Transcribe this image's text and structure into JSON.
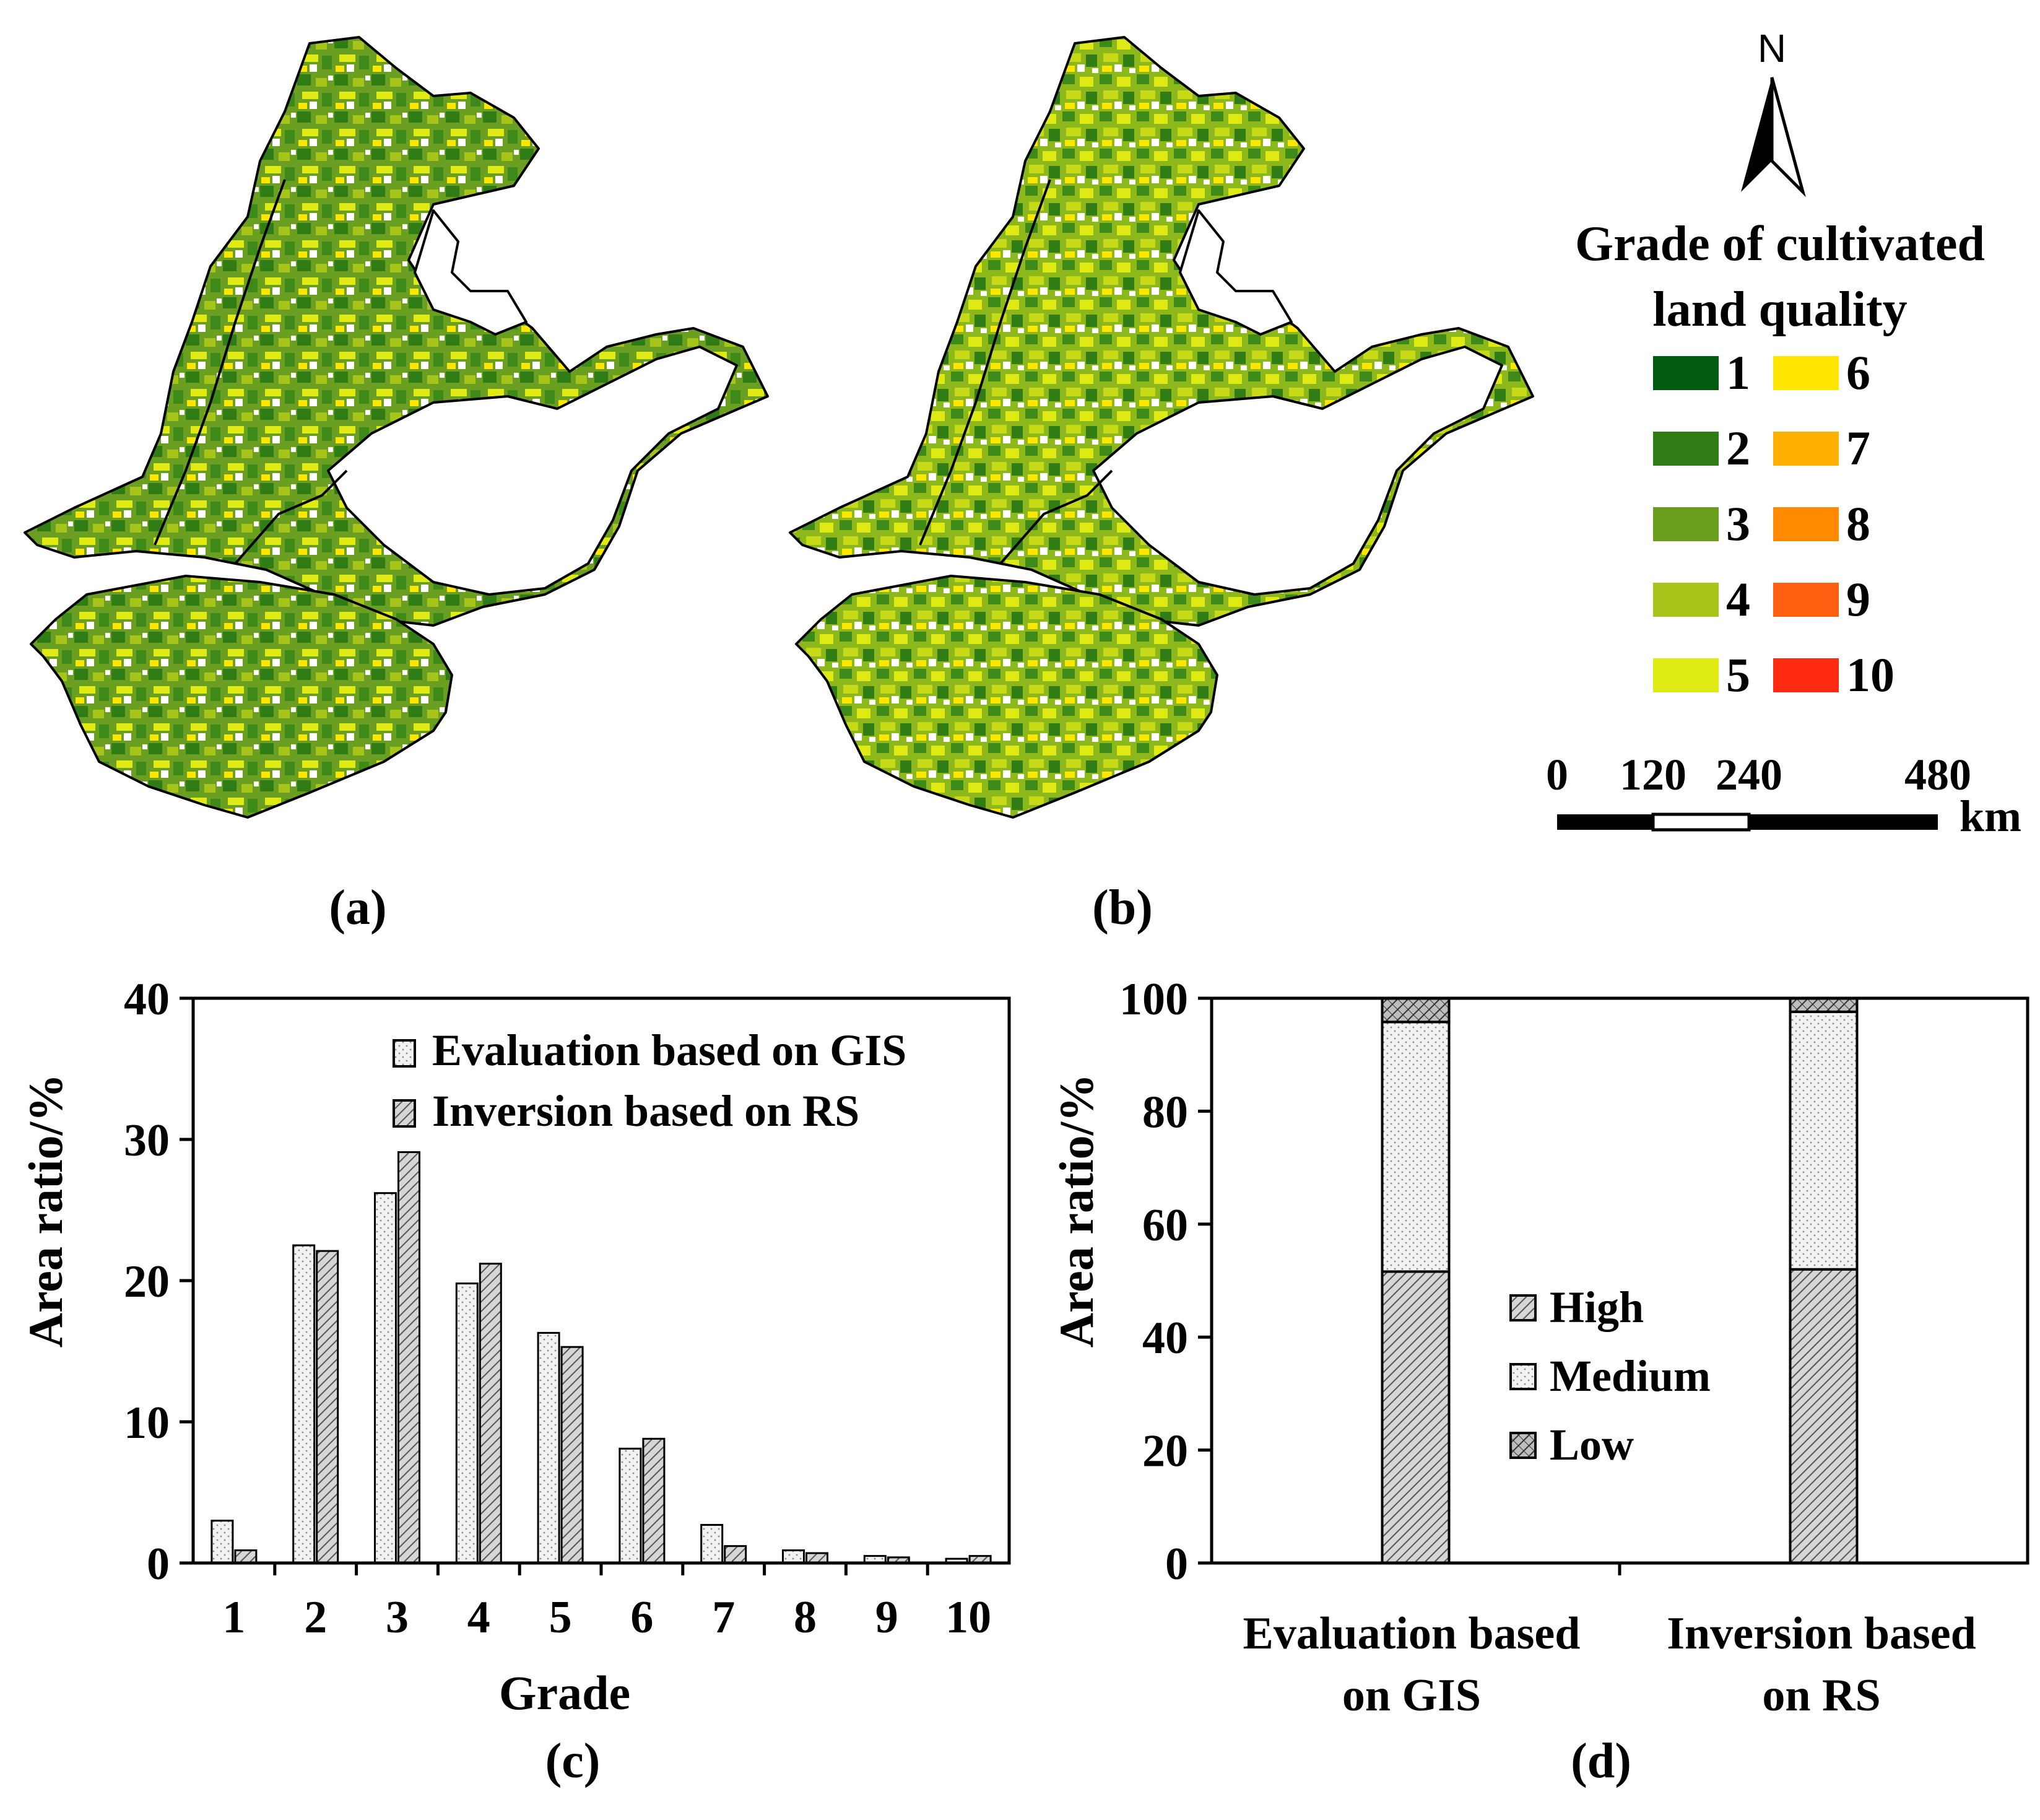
{
  "panel_labels": {
    "a": "(a)",
    "b": "(b)",
    "c": "(c)",
    "d": "(d)"
  },
  "north_arrow": {
    "label": "N",
    "icon": "north-arrow-icon"
  },
  "legend": {
    "title_line1": "Grade of cultivated",
    "title_line2": "land quality",
    "grades": [
      {
        "label": "1",
        "color": "#005a0f"
      },
      {
        "label": "2",
        "color": "#2f7d14"
      },
      {
        "label": "3",
        "color": "#689e1c"
      },
      {
        "label": "4",
        "color": "#a6c419"
      },
      {
        "label": "5",
        "color": "#dfea14"
      },
      {
        "label": "6",
        "color": "#ffe600"
      },
      {
        "label": "7",
        "color": "#ffb000"
      },
      {
        "label": "8",
        "color": "#ff8a00"
      },
      {
        "label": "9",
        "color": "#ff6010"
      },
      {
        "label": "10",
        "color": "#ff2a10"
      }
    ]
  },
  "scale_bar": {
    "ticks": [
      "0",
      "120",
      "240",
      "480"
    ],
    "unit": "km"
  },
  "chart_data": [
    {
      "id": "c",
      "type": "bar",
      "title": "",
      "xlabel": "Grade",
      "ylabel": "Area ratio/%",
      "categories": [
        "1",
        "2",
        "3",
        "4",
        "5",
        "6",
        "7",
        "8",
        "9",
        "10"
      ],
      "ylim": [
        0,
        40
      ],
      "yticks": [
        "0",
        "10",
        "20",
        "30",
        "40"
      ],
      "legend_position": "top-right",
      "series": [
        {
          "name": "Evaluation based on GIS",
          "pattern": "dotted",
          "values": [
            3.0,
            22.5,
            26.2,
            19.8,
            16.3,
            8.1,
            2.7,
            0.9,
            0.5,
            0.3
          ]
        },
        {
          "name": "Inversion based on RS",
          "pattern": "hatched",
          "values": [
            0.9,
            22.1,
            29.1,
            21.2,
            15.3,
            8.8,
            1.2,
            0.7,
            0.4,
            0.5
          ]
        }
      ]
    },
    {
      "id": "d",
      "type": "bar",
      "stacked": true,
      "title": "",
      "xlabel": "",
      "ylabel": "Area ratio/%",
      "categories": [
        {
          "line1": "Evaluation based",
          "line2": "on GIS"
        },
        {
          "line1": "Inversion based",
          "line2": "on RS"
        }
      ],
      "ylim": [
        0,
        100
      ],
      "yticks": [
        "0",
        "20",
        "40",
        "60",
        "80",
        "100"
      ],
      "legend_position": "center",
      "series": [
        {
          "name": "High",
          "pattern": "hatched",
          "values": [
            51.6,
            52.0
          ]
        },
        {
          "name": "Medium",
          "pattern": "dotted",
          "values": [
            44.2,
            45.6
          ]
        },
        {
          "name": "Low",
          "pattern": "cross-hatched",
          "values": [
            4.2,
            2.4
          ]
        }
      ]
    }
  ]
}
